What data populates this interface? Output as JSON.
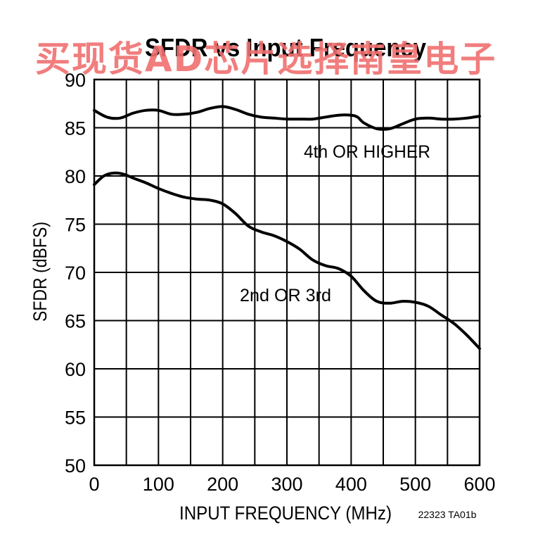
{
  "chart_data": {
    "type": "line",
    "title": "SFDR vs Input Frequency",
    "xlabel": "INPUT FREQUENCY (MHz)",
    "ylabel": "SFDR (dBFS)",
    "xlim": [
      0,
      600
    ],
    "ylim": [
      50,
      90
    ],
    "xticks": [
      0,
      100,
      200,
      300,
      400,
      500,
      600
    ],
    "yticks": [
      50,
      55,
      60,
      65,
      70,
      75,
      80,
      85,
      90
    ],
    "grid": true,
    "figure_code": "22323 TA01b",
    "series": [
      {
        "name": "4th OR HIGHER",
        "x": [
          0,
          20,
          40,
          60,
          80,
          100,
          120,
          140,
          160,
          180,
          200,
          220,
          240,
          260,
          280,
          300,
          320,
          340,
          360,
          380,
          400,
          410,
          420,
          440,
          460,
          480,
          500,
          520,
          540,
          560,
          580,
          600
        ],
        "y": [
          86.8,
          86.1,
          86.0,
          86.5,
          86.8,
          86.8,
          86.4,
          86.4,
          86.6,
          87.0,
          87.2,
          86.9,
          86.4,
          86.1,
          86.0,
          85.9,
          85.9,
          85.9,
          86.1,
          86.3,
          86.3,
          86.1,
          85.5,
          84.9,
          84.9,
          85.4,
          85.9,
          86.0,
          85.9,
          85.9,
          86.0,
          86.2
        ]
      },
      {
        "name": "2nd OR 3rd",
        "x": [
          0,
          15,
          30,
          45,
          60,
          80,
          100,
          120,
          140,
          160,
          180,
          200,
          220,
          240,
          260,
          280,
          300,
          320,
          340,
          360,
          380,
          400,
          420,
          440,
          460,
          480,
          500,
          520,
          540,
          560,
          580,
          600
        ],
        "y": [
          79.1,
          80.0,
          80.3,
          80.2,
          79.8,
          79.3,
          78.7,
          78.2,
          77.8,
          77.6,
          77.5,
          77.1,
          76.1,
          74.8,
          74.2,
          73.8,
          73.2,
          72.4,
          71.3,
          70.7,
          70.4,
          69.6,
          68.1,
          67.0,
          66.8,
          67.0,
          66.9,
          66.5,
          65.6,
          64.7,
          63.5,
          62.1
        ]
      }
    ]
  },
  "series_labels": {
    "upper": "4th OR HIGHER",
    "lower": "2nd OR 3rd"
  },
  "watermark": "买现货AD芯片选择南皇电子"
}
